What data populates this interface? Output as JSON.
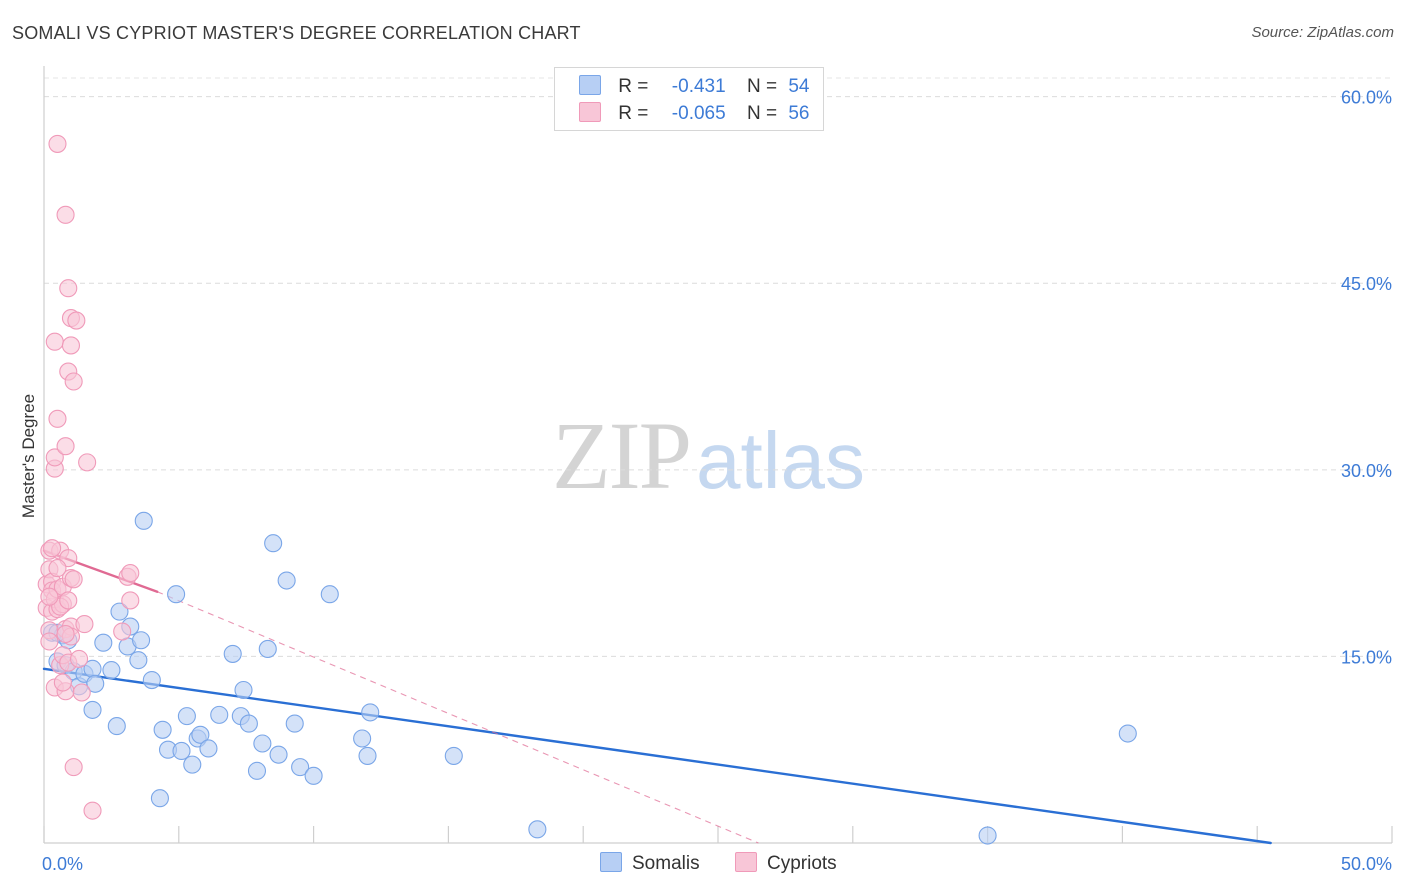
{
  "chart_data": {
    "type": "scatter",
    "title": "SOMALI VS CYPRIOT MASTER'S DEGREE CORRELATION CHART",
    "source": "Source: ZipAtlas.com",
    "watermark": {
      "zip": "ZIP",
      "atlas": "atlas"
    },
    "ylabel": "Master's Degree",
    "xlim": [
      0,
      50
    ],
    "ylim": [
      0,
      61.5
    ],
    "x_tick_labels": [
      {
        "value": 0,
        "label": "0.0%"
      },
      {
        "value": 50,
        "label": "50.0%"
      }
    ],
    "y_tick_labels": [
      {
        "value": 15,
        "label": "15.0%"
      },
      {
        "value": 30,
        "label": "30.0%"
      },
      {
        "value": 45,
        "label": "45.0%"
      },
      {
        "value": 60,
        "label": "60.0%"
      }
    ],
    "legend": [
      {
        "r_label": "R =",
        "r_value": "-0.431",
        "n_label": "N =",
        "n_value": "54"
      },
      {
        "r_label": "R =",
        "r_value": "-0.065",
        "n_label": "N =",
        "n_value": "56"
      }
    ],
    "series": [
      {
        "name": "Somalis",
        "color": "#7aa6e8",
        "fill": "#b7cff4",
        "line_color": "#2a6fd4",
        "trend": {
          "x0": 0,
          "y0": 14.0,
          "x1": 45.5,
          "y1": 0.0,
          "dashed_extension": false
        },
        "points": [
          [
            0.3,
            16.9
          ],
          [
            0.5,
            14.6
          ],
          [
            0.7,
            16.7
          ],
          [
            0.8,
            14.3
          ],
          [
            0.9,
            16.3
          ],
          [
            1.1,
            13.8
          ],
          [
            1.3,
            12.6
          ],
          [
            1.5,
            13.6
          ],
          [
            1.8,
            14.0
          ],
          [
            1.9,
            12.8
          ],
          [
            1.8,
            10.7
          ],
          [
            2.2,
            16.1
          ],
          [
            2.5,
            13.9
          ],
          [
            2.7,
            9.4
          ],
          [
            2.8,
            18.6
          ],
          [
            3.1,
            15.8
          ],
          [
            3.2,
            17.4
          ],
          [
            3.5,
            14.7
          ],
          [
            3.6,
            16.3
          ],
          [
            3.7,
            25.9
          ],
          [
            4.0,
            13.1
          ],
          [
            4.3,
            3.6
          ],
          [
            4.4,
            9.1
          ],
          [
            4.6,
            7.5
          ],
          [
            4.9,
            20.0
          ],
          [
            5.1,
            7.4
          ],
          [
            5.3,
            10.2
          ],
          [
            5.5,
            6.3
          ],
          [
            5.7,
            8.4
          ],
          [
            5.8,
            8.7
          ],
          [
            6.1,
            7.6
          ],
          [
            6.5,
            10.3
          ],
          [
            7.0,
            15.2
          ],
          [
            7.3,
            10.2
          ],
          [
            7.4,
            12.3
          ],
          [
            7.6,
            9.6
          ],
          [
            7.9,
            5.8
          ],
          [
            8.1,
            8.0
          ],
          [
            8.3,
            15.6
          ],
          [
            8.5,
            24.1
          ],
          [
            8.7,
            7.1
          ],
          [
            9.0,
            21.1
          ],
          [
            9.3,
            9.6
          ],
          [
            9.5,
            6.1
          ],
          [
            10.0,
            5.4
          ],
          [
            10.6,
            20.0
          ],
          [
            11.8,
            8.4
          ],
          [
            12.0,
            7.0
          ],
          [
            12.1,
            10.5
          ],
          [
            15.2,
            7.0
          ],
          [
            18.3,
            1.1
          ],
          [
            35.0,
            0.6
          ],
          [
            40.2,
            8.8
          ],
          [
            0.5,
            16.9
          ]
        ]
      },
      {
        "name": "Cypriots",
        "color": "#f09ab9",
        "fill": "#f8c6d7",
        "line_color": "#e06a93",
        "trend": {
          "x0": 0,
          "y0": 23.5,
          "x1": 4.2,
          "y1": 20.2,
          "dashed_extension": true,
          "dash_to": {
            "x": 26.5,
            "y": 0.0
          }
        },
        "points": [
          [
            0.1,
            20.8
          ],
          [
            0.1,
            18.9
          ],
          [
            0.2,
            23.5
          ],
          [
            0.2,
            22.0
          ],
          [
            0.2,
            17.1
          ],
          [
            0.2,
            16.2
          ],
          [
            0.3,
            21.0
          ],
          [
            0.3,
            20.3
          ],
          [
            0.3,
            18.6
          ],
          [
            0.4,
            30.1
          ],
          [
            0.4,
            31.0
          ],
          [
            0.4,
            40.3
          ],
          [
            0.4,
            19.6
          ],
          [
            0.4,
            12.5
          ],
          [
            0.5,
            56.2
          ],
          [
            0.5,
            34.1
          ],
          [
            0.5,
            20.4
          ],
          [
            0.5,
            18.8
          ],
          [
            0.6,
            14.3
          ],
          [
            0.6,
            23.5
          ],
          [
            0.7,
            20.6
          ],
          [
            0.7,
            19.2
          ],
          [
            0.7,
            15.1
          ],
          [
            0.8,
            50.5
          ],
          [
            0.8,
            17.2
          ],
          [
            0.8,
            12.2
          ],
          [
            0.8,
            31.9
          ],
          [
            0.9,
            22.9
          ],
          [
            0.9,
            44.6
          ],
          [
            0.9,
            37.9
          ],
          [
            0.9,
            14.5
          ],
          [
            1.0,
            42.2
          ],
          [
            1.0,
            40.0
          ],
          [
            1.0,
            21.3
          ],
          [
            1.0,
            17.4
          ],
          [
            1.0,
            16.6
          ],
          [
            1.1,
            37.1
          ],
          [
            1.1,
            21.2
          ],
          [
            1.1,
            6.1
          ],
          [
            1.2,
            42.0
          ],
          [
            1.3,
            14.8
          ],
          [
            1.4,
            12.1
          ],
          [
            1.5,
            17.6
          ],
          [
            1.6,
            30.6
          ],
          [
            1.8,
            2.6
          ],
          [
            2.9,
            17.0
          ],
          [
            3.1,
            21.4
          ],
          [
            3.2,
            19.5
          ],
          [
            3.2,
            21.7
          ],
          [
            0.3,
            23.7
          ],
          [
            0.6,
            19.0
          ],
          [
            0.8,
            16.8
          ],
          [
            0.2,
            19.8
          ],
          [
            0.5,
            22.1
          ],
          [
            0.9,
            19.5
          ],
          [
            0.7,
            12.9
          ]
        ]
      }
    ]
  }
}
